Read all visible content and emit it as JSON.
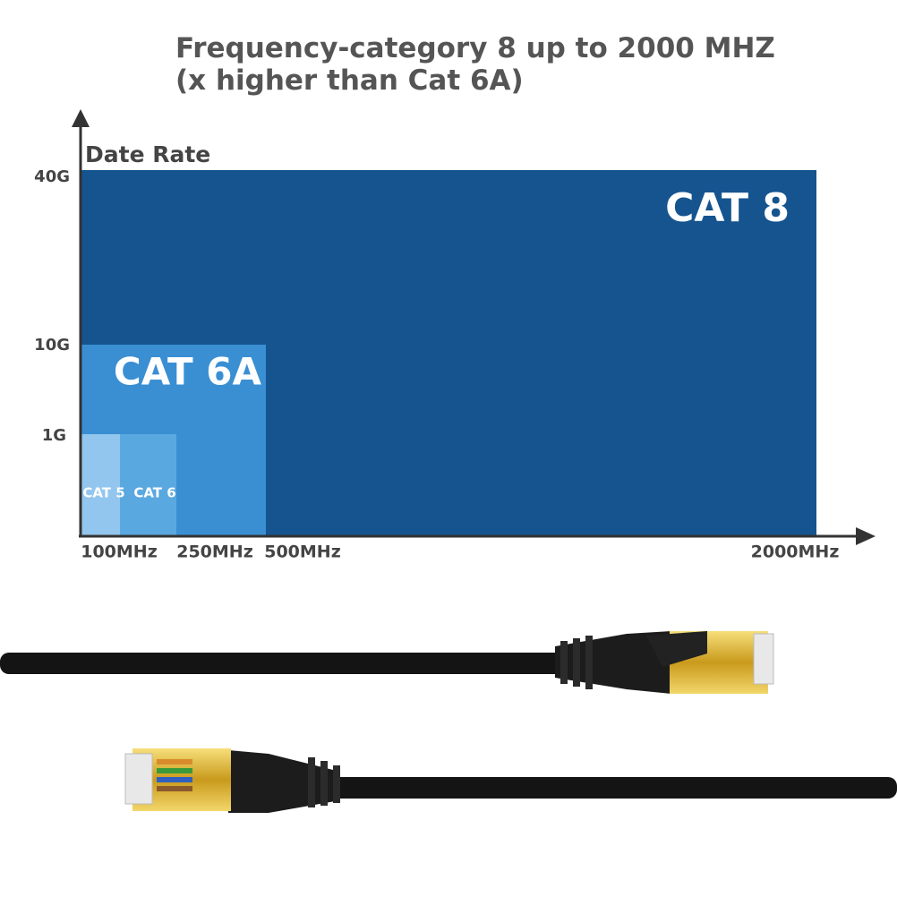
{
  "header": {
    "title_line1": "Frequency-category 8 up to 2000 MHZ",
    "title_line2": "(x higher than Cat 6A)"
  },
  "diagram": {
    "y_axis_label": "Date Rate",
    "y_labels": [
      "40G",
      "10G",
      "1G"
    ],
    "x_labels": [
      "100MHz",
      "250MHz",
      "500MHz",
      "2000MHz"
    ],
    "boxes": [
      "CAT 8",
      "CAT 6A",
      "CAT 6",
      "CAT 5"
    ]
  }
}
